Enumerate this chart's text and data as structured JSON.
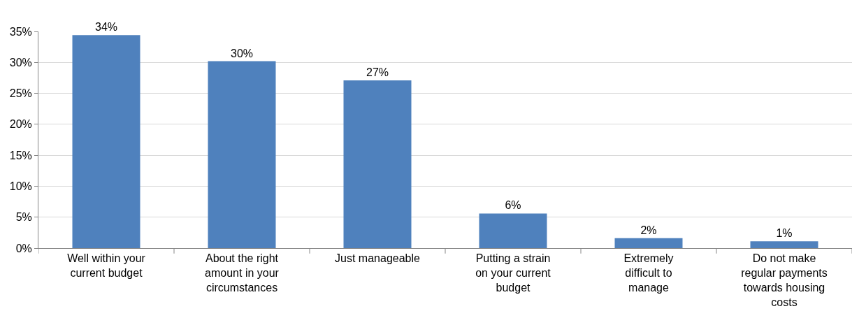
{
  "chart_data": {
    "type": "bar",
    "categories": [
      "Well within your current budget",
      "About the right amount in your circumstances",
      "Just manageable",
      "Putting a strain on your current budget",
      "Extremely difficult to manage",
      "Do not make regular payments towards housing costs"
    ],
    "values": [
      34.4,
      30.2,
      27.1,
      5.6,
      1.6,
      1.1
    ],
    "value_labels": [
      "34%",
      "30%",
      "27%",
      "6%",
      "2%",
      "1%"
    ],
    "color": "#4f81bd",
    "ylim": [
      0,
      35
    ],
    "yticks": [
      {
        "value": 0,
        "label": "0%"
      },
      {
        "value": 5,
        "label": "5%"
      },
      {
        "value": 10,
        "label": "10%"
      },
      {
        "value": 15,
        "label": "15%"
      },
      {
        "value": 20,
        "label": "20%"
      },
      {
        "value": 25,
        "label": "25%"
      },
      {
        "value": 30,
        "label": "30%"
      },
      {
        "value": 35,
        "label": "35%"
      }
    ],
    "grid": "y",
    "legend": false
  }
}
